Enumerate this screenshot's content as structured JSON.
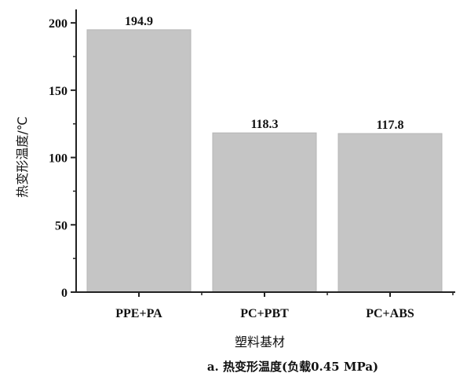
{
  "chart_data": {
    "type": "bar",
    "categories": [
      "PPE+PA",
      "PC+PBT",
      "PC+ABS"
    ],
    "values": [
      194.9,
      118.3,
      117.8
    ],
    "value_labels": [
      "194.9",
      "118.3",
      "117.8"
    ],
    "xlabel": "塑料基材",
    "ylabel": "热变形温度/℃",
    "ylim": [
      0,
      210
    ],
    "yticks": [
      0,
      50,
      100,
      150,
      200
    ],
    "caption": "a. 热变形温度(负载0.45 MPa)",
    "grid": false,
    "bar_color": "#c5c5c5",
    "axis_color": "#222222"
  }
}
